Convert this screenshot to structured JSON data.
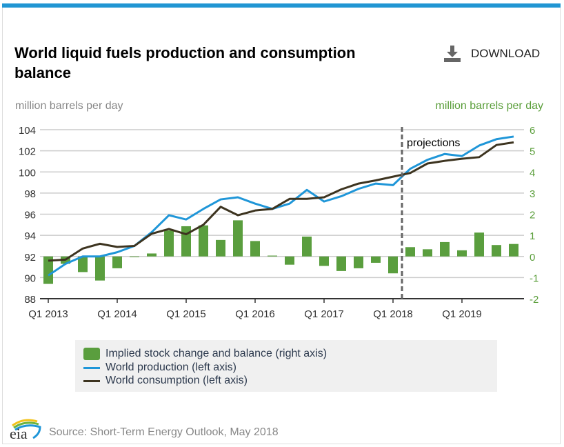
{
  "header": {
    "title": "World liquid fuels production and consumption balance",
    "download_label": "DOWNLOAD"
  },
  "colors": {
    "accent": "#2196d3",
    "production": "#1f96d8",
    "consumption": "#3d3420",
    "bars": "#5a9e3e",
    "right_axis": "#5a9e3a"
  },
  "chart_data": {
    "type": "bar+line",
    "ylabel_left": "million barrels per day",
    "ylabel_right": "million barrels per day",
    "ylim_left": [
      88,
      104
    ],
    "ylim_right": [
      -2,
      6
    ],
    "yticks_left": [
      "88",
      "90",
      "92",
      "94",
      "96",
      "98",
      "100",
      "102",
      "104"
    ],
    "yticks_right": [
      "-2",
      "-1",
      "0",
      "1",
      "2",
      "3",
      "4",
      "5",
      "6"
    ],
    "xtick_labels": [
      "Q1 2013",
      "Q1 2014",
      "Q1 2015",
      "Q1 2016",
      "Q1 2017",
      "Q1 2018",
      "Q1 2019"
    ],
    "categories": [
      "Q1 2013",
      "Q2 2013",
      "Q3 2013",
      "Q4 2013",
      "Q1 2014",
      "Q2 2014",
      "Q3 2014",
      "Q4 2014",
      "Q1 2015",
      "Q2 2015",
      "Q3 2015",
      "Q4 2015",
      "Q1 2016",
      "Q2 2016",
      "Q3 2016",
      "Q4 2016",
      "Q1 2017",
      "Q2 2017",
      "Q3 2017",
      "Q4 2017",
      "Q1 2018",
      "Q2 2018",
      "Q3 2018",
      "Q4 2018",
      "Q1 2019",
      "Q2 2019",
      "Q3 2019",
      "Q4 2019"
    ],
    "grid": true,
    "annotation": "projections",
    "projection_start": "Q2 2018",
    "series": [
      {
        "name": "Implied stock change and balance (right axis)",
        "type": "bar",
        "axis": "right",
        "values": [
          -1.3,
          -0.35,
          -0.74,
          -1.14,
          -0.56,
          0.0,
          0.14,
          1.23,
          1.43,
          1.47,
          0.78,
          1.71,
          0.73,
          0.04,
          -0.39,
          0.94,
          -0.45,
          -0.69,
          -0.56,
          -0.3,
          -0.8,
          0.44,
          0.34,
          0.68,
          0.29,
          1.13,
          0.54,
          0.59
        ]
      },
      {
        "name": "World production (left axis)",
        "type": "line",
        "axis": "left",
        "values": [
          90.2,
          91.3,
          92.0,
          92.0,
          92.4,
          93.0,
          94.3,
          95.9,
          95.5,
          96.5,
          97.4,
          97.6,
          97.0,
          96.5,
          97.0,
          98.3,
          97.2,
          97.7,
          98.4,
          98.9,
          98.75,
          100.3,
          101.15,
          101.7,
          101.5,
          102.5,
          103.1,
          103.35
        ]
      },
      {
        "name": "World consumption (left axis)",
        "type": "line",
        "axis": "left",
        "values": [
          91.6,
          91.7,
          92.75,
          93.2,
          92.9,
          93.0,
          94.15,
          94.6,
          94.1,
          95.0,
          96.7,
          95.9,
          96.35,
          96.5,
          97.45,
          97.45,
          97.6,
          98.35,
          98.9,
          99.2,
          99.55,
          99.9,
          100.8,
          101.05,
          101.25,
          101.4,
          102.55,
          102.8
        ]
      }
    ],
    "legend_position": "bottom"
  },
  "footer": {
    "source": "Source: Short-Term Energy Outlook, May 2018",
    "logo_text": "eia"
  }
}
